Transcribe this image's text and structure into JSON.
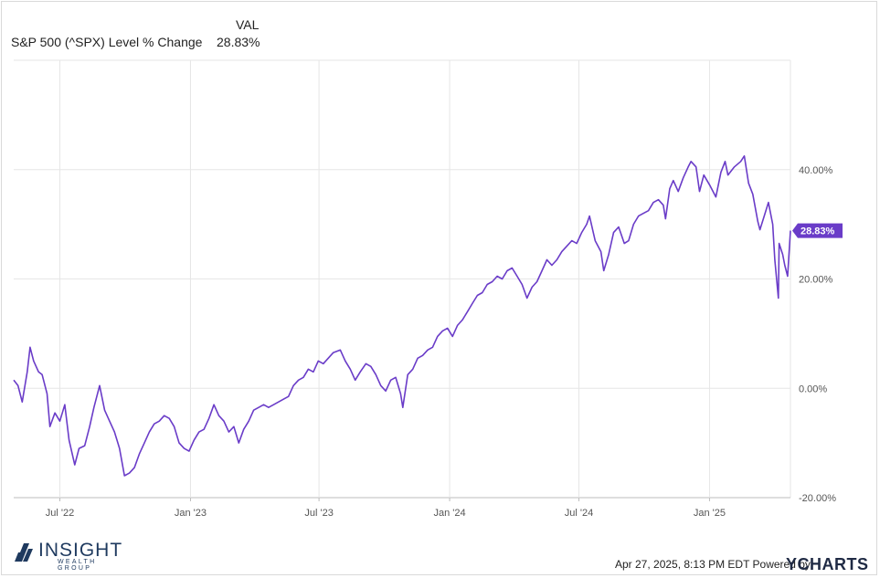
{
  "legend": {
    "column_header": "VAL",
    "series_name": "S&P 500 (^SPX) Level % Change",
    "series_value": "28.83%"
  },
  "footer": {
    "timestamp": "Apr 27, 2025, 8:13 PM EDT Powered by",
    "brand": "YCHARTS"
  },
  "logo": {
    "name": "INSIGHT",
    "subtitle": "WEALTH GROUP"
  },
  "colors": {
    "series": "#6a3cc8",
    "grid": "#e6e6e6",
    "logo": "#1f3a5f"
  },
  "chart_data": {
    "type": "line",
    "y_unit": "%",
    "ylim": [
      -20,
      60
    ],
    "y_ticks": [
      {
        "value": 40,
        "label": "40.00%"
      },
      {
        "value": 20,
        "label": "20.00%"
      },
      {
        "value": 0,
        "label": "0.00%"
      },
      {
        "value": -20,
        "label": "-20.00%"
      }
    ],
    "x_ticks": [
      "Jul '22",
      "Jan '23",
      "Jul '23",
      "Jan '24",
      "Jul '24",
      "Jan '25"
    ],
    "xlim": [
      "2022-04-27",
      "2025-04-25"
    ],
    "grid": true,
    "end_label": "28.83%",
    "series": [
      {
        "name": "S&P 500 (^SPX) Level % Change",
        "points": [
          [
            "2022-04-27",
            1.5
          ],
          [
            "2022-05-03",
            0.5
          ],
          [
            "2022-05-09",
            -2.5
          ],
          [
            "2022-05-16",
            3.0
          ],
          [
            "2022-05-20",
            7.5
          ],
          [
            "2022-05-25",
            5.0
          ],
          [
            "2022-06-01",
            3.0
          ],
          [
            "2022-06-06",
            2.5
          ],
          [
            "2022-06-13",
            -1.0
          ],
          [
            "2022-06-17",
            -7.0
          ],
          [
            "2022-06-24",
            -4.5
          ],
          [
            "2022-07-01",
            -6.0
          ],
          [
            "2022-07-08",
            -3.0
          ],
          [
            "2022-07-14",
            -9.5
          ],
          [
            "2022-07-22",
            -14.0
          ],
          [
            "2022-07-28",
            -11.0
          ],
          [
            "2022-08-05",
            -10.5
          ],
          [
            "2022-08-12",
            -7.0
          ],
          [
            "2022-08-18",
            -3.5
          ],
          [
            "2022-08-26",
            0.5
          ],
          [
            "2022-09-02",
            -4.0
          ],
          [
            "2022-09-09",
            -6.0
          ],
          [
            "2022-09-16",
            -8.0
          ],
          [
            "2022-09-23",
            -11.0
          ],
          [
            "2022-09-30",
            -16.0
          ],
          [
            "2022-10-07",
            -15.5
          ],
          [
            "2022-10-14",
            -14.5
          ],
          [
            "2022-10-21",
            -12.0
          ],
          [
            "2022-10-28",
            -10.0
          ],
          [
            "2022-11-04",
            -8.0
          ],
          [
            "2022-11-11",
            -6.5
          ],
          [
            "2022-11-18",
            -6.0
          ],
          [
            "2022-11-25",
            -5.0
          ],
          [
            "2022-12-02",
            -5.5
          ],
          [
            "2022-12-09",
            -7.0
          ],
          [
            "2022-12-16",
            -10.0
          ],
          [
            "2022-12-23",
            -11.0
          ],
          [
            "2022-12-30",
            -11.5
          ],
          [
            "2023-01-06",
            -9.5
          ],
          [
            "2023-01-13",
            -8.0
          ],
          [
            "2023-01-20",
            -7.5
          ],
          [
            "2023-01-27",
            -5.5
          ],
          [
            "2023-02-03",
            -3.0
          ],
          [
            "2023-02-10",
            -5.0
          ],
          [
            "2023-02-17",
            -6.0
          ],
          [
            "2023-02-24",
            -8.0
          ],
          [
            "2023-03-03",
            -7.0
          ],
          [
            "2023-03-10",
            -10.0
          ],
          [
            "2023-03-17",
            -7.5
          ],
          [
            "2023-03-24",
            -6.0
          ],
          [
            "2023-03-31",
            -4.0
          ],
          [
            "2023-04-07",
            -3.5
          ],
          [
            "2023-04-14",
            -3.0
          ],
          [
            "2023-04-21",
            -3.5
          ],
          [
            "2023-04-28",
            -3.0
          ],
          [
            "2023-05-05",
            -2.5
          ],
          [
            "2023-05-12",
            -2.0
          ],
          [
            "2023-05-19",
            -1.5
          ],
          [
            "2023-05-26",
            0.5
          ],
          [
            "2023-06-02",
            1.5
          ],
          [
            "2023-06-09",
            2.0
          ],
          [
            "2023-06-16",
            3.5
          ],
          [
            "2023-06-23",
            3.0
          ],
          [
            "2023-06-30",
            5.0
          ],
          [
            "2023-07-07",
            4.5
          ],
          [
            "2023-07-14",
            5.5
          ],
          [
            "2023-07-21",
            6.5
          ],
          [
            "2023-07-31",
            7.0
          ],
          [
            "2023-08-07",
            5.0
          ],
          [
            "2023-08-14",
            3.5
          ],
          [
            "2023-08-21",
            1.5
          ],
          [
            "2023-08-28",
            3.0
          ],
          [
            "2023-09-05",
            4.5
          ],
          [
            "2023-09-12",
            4.0
          ],
          [
            "2023-09-19",
            2.5
          ],
          [
            "2023-09-26",
            0.5
          ],
          [
            "2023-10-03",
            -0.5
          ],
          [
            "2023-10-10",
            1.5
          ],
          [
            "2023-10-17",
            2.0
          ],
          [
            "2023-10-24",
            -1.0
          ],
          [
            "2023-10-27",
            -3.5
          ],
          [
            "2023-11-03",
            2.5
          ],
          [
            "2023-11-10",
            3.5
          ],
          [
            "2023-11-17",
            5.5
          ],
          [
            "2023-11-24",
            6.0
          ],
          [
            "2023-12-01",
            7.0
          ],
          [
            "2023-12-08",
            7.5
          ],
          [
            "2023-12-15",
            9.5
          ],
          [
            "2023-12-22",
            10.5
          ],
          [
            "2023-12-29",
            11.0
          ],
          [
            "2024-01-05",
            9.5
          ],
          [
            "2024-01-12",
            11.5
          ],
          [
            "2024-01-19",
            12.5
          ],
          [
            "2024-01-26",
            14.0
          ],
          [
            "2024-02-02",
            15.5
          ],
          [
            "2024-02-09",
            17.0
          ],
          [
            "2024-02-16",
            17.5
          ],
          [
            "2024-02-23",
            19.0
          ],
          [
            "2024-03-01",
            19.5
          ],
          [
            "2024-03-08",
            20.5
          ],
          [
            "2024-03-15",
            20.0
          ],
          [
            "2024-03-22",
            21.5
          ],
          [
            "2024-03-29",
            22.0
          ],
          [
            "2024-04-05",
            20.5
          ],
          [
            "2024-04-12",
            19.0
          ],
          [
            "2024-04-19",
            16.5
          ],
          [
            "2024-04-26",
            18.5
          ],
          [
            "2024-05-03",
            19.5
          ],
          [
            "2024-05-10",
            21.5
          ],
          [
            "2024-05-17",
            23.5
          ],
          [
            "2024-05-24",
            22.5
          ],
          [
            "2024-05-31",
            23.5
          ],
          [
            "2024-06-07",
            25.0
          ],
          [
            "2024-06-14",
            26.0
          ],
          [
            "2024-06-21",
            27.0
          ],
          [
            "2024-06-28",
            26.5
          ],
          [
            "2024-07-05",
            28.5
          ],
          [
            "2024-07-12",
            30.0
          ],
          [
            "2024-07-16",
            31.5
          ],
          [
            "2024-07-24",
            27.0
          ],
          [
            "2024-08-01",
            25.0
          ],
          [
            "2024-08-05",
            21.5
          ],
          [
            "2024-08-12",
            24.5
          ],
          [
            "2024-08-19",
            28.5
          ],
          [
            "2024-08-26",
            29.5
          ],
          [
            "2024-09-03",
            26.5
          ],
          [
            "2024-09-09",
            27.0
          ],
          [
            "2024-09-16",
            30.0
          ],
          [
            "2024-09-23",
            31.5
          ],
          [
            "2024-09-30",
            32.0
          ],
          [
            "2024-10-07",
            32.5
          ],
          [
            "2024-10-14",
            34.0
          ],
          [
            "2024-10-21",
            34.5
          ],
          [
            "2024-10-28",
            33.5
          ],
          [
            "2024-10-31",
            31.0
          ],
          [
            "2024-11-06",
            36.5
          ],
          [
            "2024-11-11",
            38.0
          ],
          [
            "2024-11-18",
            36.0
          ],
          [
            "2024-11-25",
            38.5
          ],
          [
            "2024-12-02",
            40.5
          ],
          [
            "2024-12-06",
            41.5
          ],
          [
            "2024-12-13",
            40.5
          ],
          [
            "2024-12-18",
            36.0
          ],
          [
            "2024-12-24",
            39.0
          ],
          [
            "2025-01-02",
            37.0
          ],
          [
            "2025-01-10",
            35.0
          ],
          [
            "2025-01-17",
            39.5
          ],
          [
            "2025-01-23",
            41.5
          ],
          [
            "2025-01-27",
            39.0
          ],
          [
            "2025-02-05",
            40.5
          ],
          [
            "2025-02-14",
            41.5
          ],
          [
            "2025-02-19",
            42.5
          ],
          [
            "2025-02-25",
            37.5
          ],
          [
            "2025-03-03",
            35.5
          ],
          [
            "2025-03-10",
            30.5
          ],
          [
            "2025-03-13",
            29.0
          ],
          [
            "2025-03-19",
            31.5
          ],
          [
            "2025-03-25",
            34.0
          ],
          [
            "2025-03-31",
            30.0
          ],
          [
            "2025-04-03",
            23.5
          ],
          [
            "2025-04-08",
            16.5
          ],
          [
            "2025-04-09",
            26.5
          ],
          [
            "2025-04-14",
            24.5
          ],
          [
            "2025-04-17",
            22.5
          ],
          [
            "2025-04-21",
            20.5
          ],
          [
            "2025-04-25",
            28.83
          ]
        ]
      }
    ]
  }
}
